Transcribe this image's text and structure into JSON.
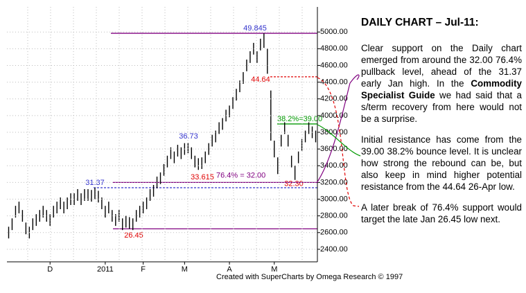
{
  "chart_data": {
    "type": "range-bar",
    "categories": [
      null,
      null,
      null,
      null,
      null,
      null,
      null,
      null,
      null,
      null,
      null,
      null,
      "D",
      null,
      null,
      null,
      null,
      null,
      null,
      null,
      null,
      null,
      null,
      null,
      null,
      null,
      null,
      null,
      "2011",
      null,
      null,
      null,
      null,
      null,
      null,
      null,
      null,
      null,
      null,
      "F",
      null,
      null,
      null,
      null,
      null,
      null,
      null,
      null,
      null,
      null,
      null,
      "M",
      null,
      null,
      null,
      null,
      null,
      null,
      null,
      null,
      null,
      null,
      null,
      null,
      "A",
      null,
      null,
      null,
      null,
      null,
      null,
      null,
      null,
      null,
      null,
      null,
      null,
      "M",
      null,
      null,
      null,
      null,
      null,
      null,
      null,
      null,
      null,
      null,
      null,
      null
    ],
    "high": [
      2670,
      2770,
      2920,
      2970,
      2870,
      2720,
      2670,
      2770,
      2820,
      2870,
      2920,
      2870,
      2820,
      2920,
      2970,
      3020,
      2970,
      3020,
      3070,
      3070,
      3120,
      3070,
      3120,
      3120,
      3110,
      3137,
      3100,
      3020,
      2920,
      2970,
      2870,
      2820,
      2870,
      2770,
      2800,
      2785,
      2770,
      2870,
      2920,
      2970,
      3020,
      3120,
      3170,
      3270,
      3320,
      3420,
      3520,
      3620,
      3570,
      3650,
      3620,
      3670,
      3673,
      3620,
      3520,
      3490,
      3500,
      3570,
      3670,
      3770,
      3820,
      3920,
      3970,
      4070,
      4120,
      4220,
      4320,
      4420,
      4520,
      4670,
      4770,
      4870,
      4770,
      4920,
      4984.5,
      4800,
      4300,
      3700,
      3500,
      3770,
      3920,
      3770,
      3520,
      3400,
      3570,
      3720,
      3820,
      3920,
      3870,
      3820
    ],
    "low": [
      2530,
      2630,
      2780,
      2830,
      2730,
      2580,
      2530,
      2630,
      2680,
      2730,
      2780,
      2730,
      2680,
      2780,
      2830,
      2880,
      2830,
      2880,
      2930,
      2930,
      2980,
      2930,
      2980,
      2980,
      2970,
      3000,
      2960,
      2880,
      2780,
      2830,
      2730,
      2680,
      2730,
      2630,
      2660,
      2645,
      2630,
      2730,
      2780,
      2830,
      2880,
      2980,
      3030,
      3130,
      3180,
      3280,
      3380,
      3480,
      3430,
      3510,
      3480,
      3530,
      3550,
      3480,
      3380,
      3350,
      3361,
      3430,
      3530,
      3630,
      3680,
      3780,
      3830,
      3930,
      3980,
      4080,
      4180,
      4280,
      4380,
      4530,
      4630,
      4730,
      4630,
      4780,
      4810,
      4500,
      3700,
      3500,
      3300,
      3630,
      3780,
      3630,
      3380,
      3230,
      3430,
      3580,
      3680,
      3780,
      3730,
      3680
    ],
    "color": "#000000",
    "ylim": [
      2250,
      5300
    ],
    "yticks": [
      {
        "value": 2400,
        "label": "2400.00"
      },
      {
        "value": 2600,
        "label": "2600.00"
      },
      {
        "value": 2800,
        "label": "2800.00"
      },
      {
        "value": 3000,
        "label": "3000.00"
      },
      {
        "value": 3200,
        "label": "3200.00"
      },
      {
        "value": 3400,
        "label": "3400.00"
      },
      {
        "value": 3600,
        "label": "3600.00"
      },
      {
        "value": 3800,
        "label": "3800.00"
      },
      {
        "value": 4000,
        "label": "4000.00"
      },
      {
        "value": 4200,
        "label": "4200.00"
      },
      {
        "value": 4400,
        "label": "4400.00"
      },
      {
        "value": 4600,
        "label": "4600.00"
      },
      {
        "value": 4800,
        "label": "4800.00"
      },
      {
        "value": 5000,
        "label": "5000.00"
      }
    ],
    "grid": true,
    "levels": [
      {
        "value": 4984.5,
        "label": "49.845",
        "color": "#800080"
      },
      {
        "value": 4464,
        "label": "44.64",
        "color": "#e00000"
      },
      {
        "value": 3900,
        "label": "38.2%=39.00",
        "color": "#009900"
      },
      {
        "value": 3200,
        "label": "76.4% = 32.00",
        "color": "#800080"
      },
      {
        "value": 3137,
        "label": "31.37",
        "color": "#3333cc"
      },
      {
        "value": 2645,
        "label": "26.45",
        "color": "#800080"
      }
    ],
    "annotations": [
      {
        "value": 3673,
        "label": "36.73"
      },
      {
        "value": 3361.5,
        "label": "33.615"
      },
      {
        "value": 3230,
        "label": "32.30"
      }
    ],
    "footer": "Created with SuperCharts by Omega Research © 1997"
  },
  "commentary": {
    "title": "DAILY CHART – Jul-11:",
    "paragraphs": [
      [
        {
          "text": "Clear support on the Daily chart emerged from around the 32.00 76.4% pullback level, ahead of the 31.37 early Jan high. In the ",
          "bold": false
        },
        {
          "text": "Commodity Specialist Guide",
          "bold": true
        },
        {
          "text": " we had said that a s/term recovery from here would not be a surprise.",
          "bold": false
        }
      ],
      [
        {
          "text": "Initial resistance has come from the 39.00 38.2% bounce level. It is unclear how strong the rebound can be, but also keep in mind higher potential resistance from the 44.64 26-Apr low.",
          "bold": false
        }
      ],
      [
        {
          "text": "A later break of 76.4% support would target the late Jan 26.45 low next.",
          "bold": false
        }
      ]
    ]
  }
}
